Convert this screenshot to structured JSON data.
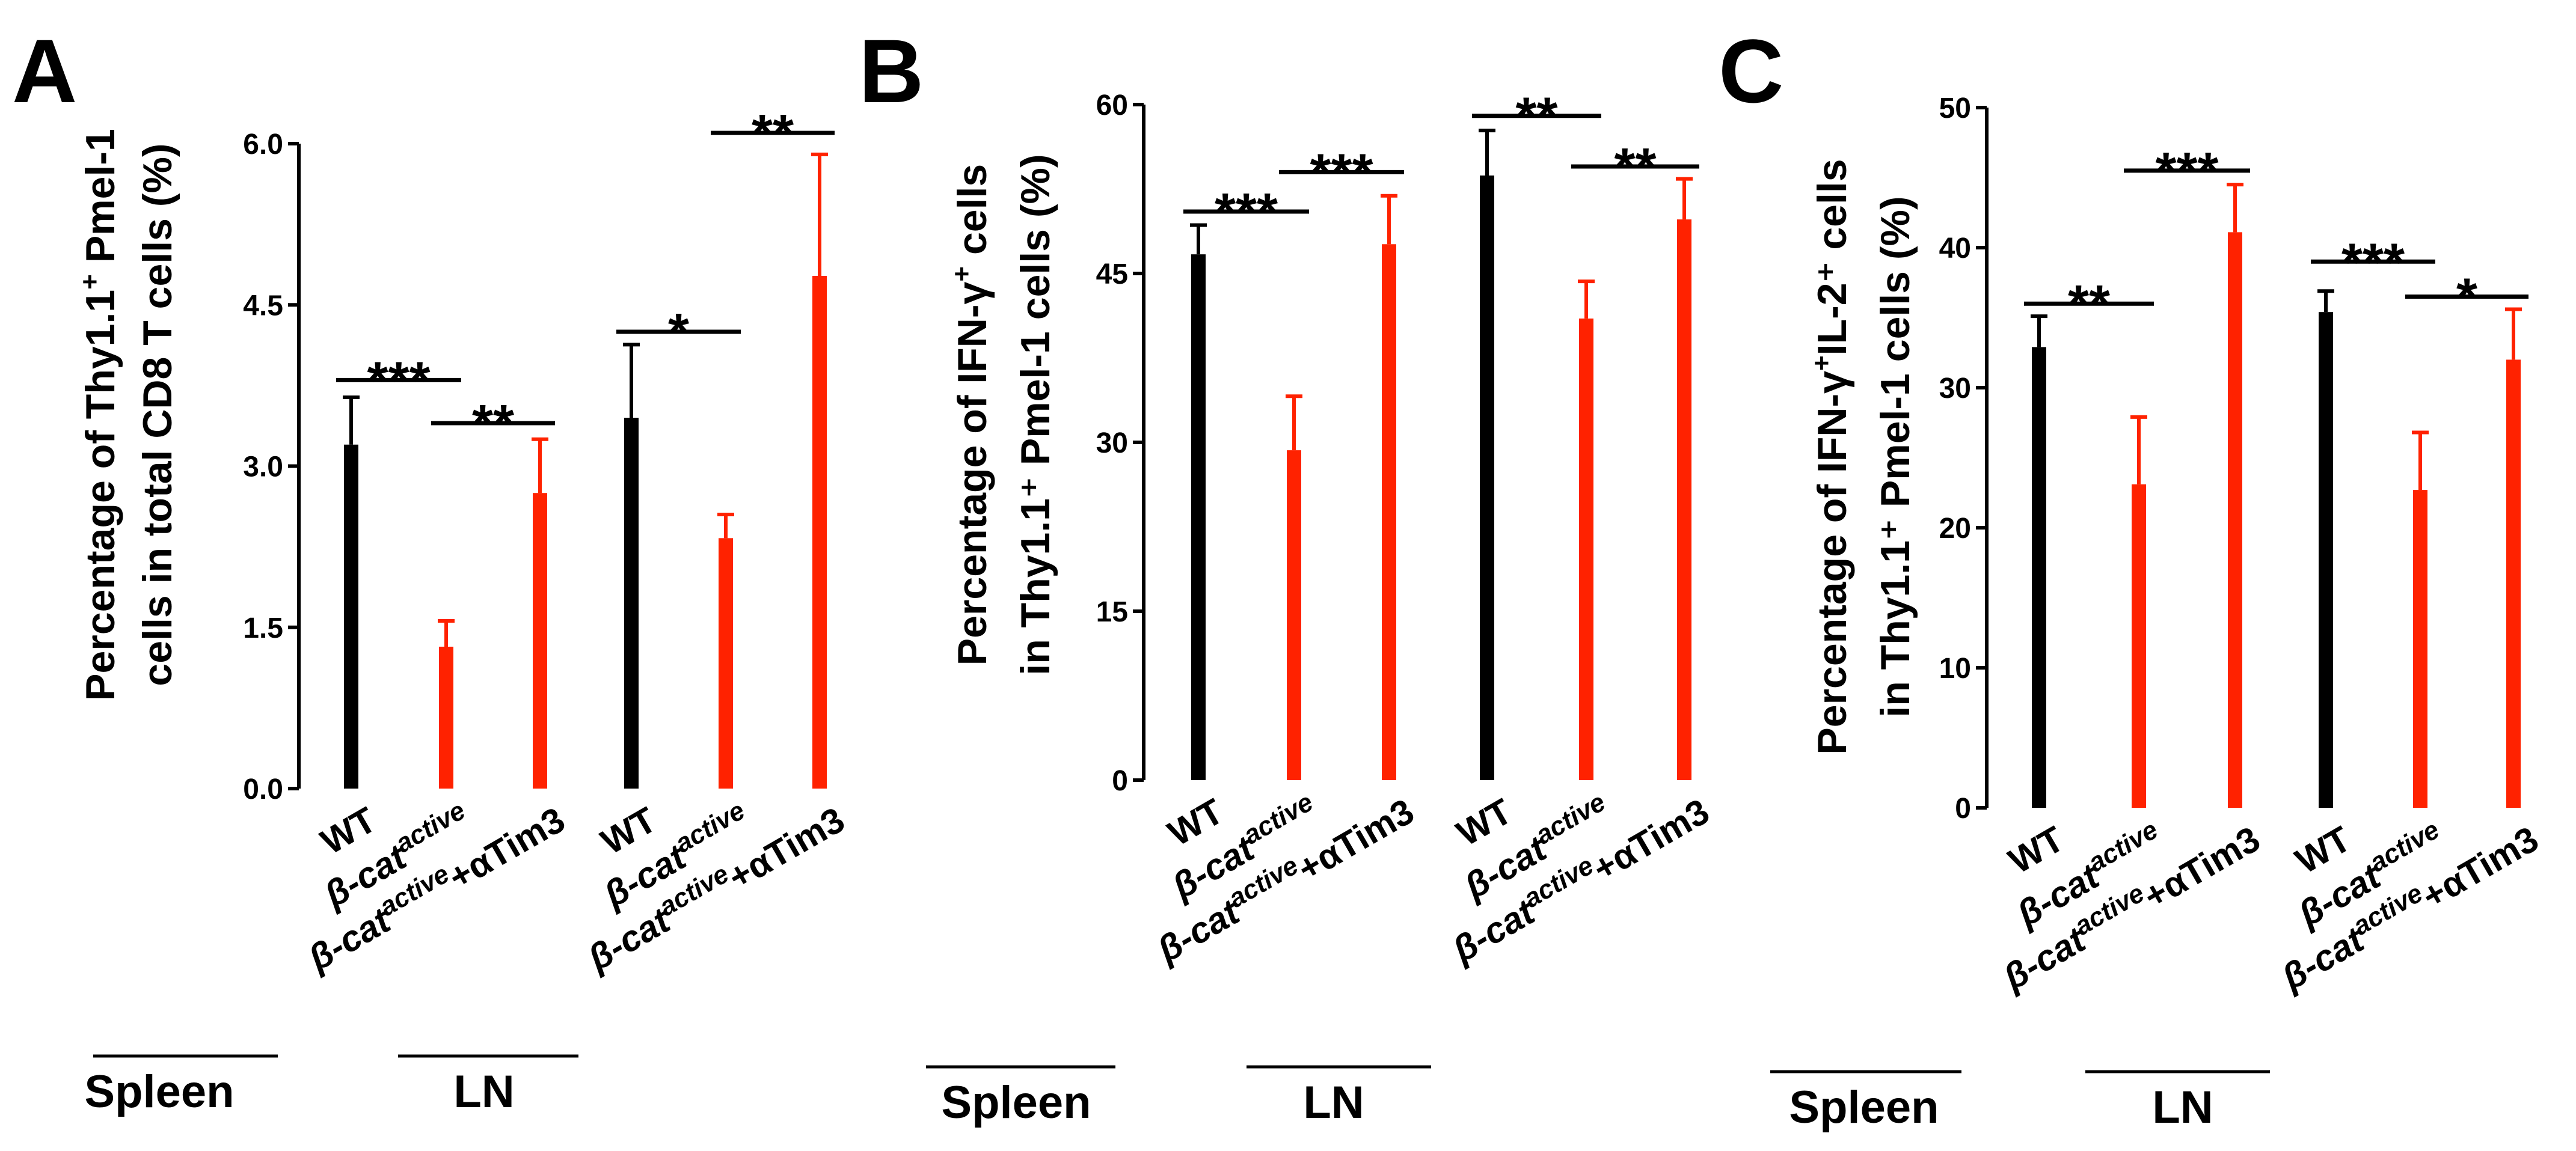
{
  "colors": {
    "wt": "#000000",
    "treated": "#ff2200",
    "axis": "#000000"
  },
  "chart_data": [
    {
      "panel_label": "A",
      "type": "bar",
      "ylabel_line1": "Percentage of Thy1.1",
      "ylabel_sup1": "+",
      "ylabel_line1_tail": " Pmel-1",
      "ylabel_line2": "cells in total CD8 T cells (%)",
      "ylim": [
        0,
        6.0
      ],
      "yticks": [
        "0.0",
        "1.5",
        "3.0",
        "4.5",
        "6.0"
      ],
      "ytick_values": [
        0,
        1.5,
        3.0,
        4.5,
        6.0
      ],
      "categories": [
        "WT",
        "β-cat active",
        "β-cat active+αTim3",
        "WT",
        "β-cat active",
        "β-cat active+αTim3"
      ],
      "values": [
        3.2,
        1.32,
        2.75,
        3.45,
        2.33,
        4.77
      ],
      "errors": [
        0.44,
        0.24,
        0.5,
        0.68,
        0.22,
        1.13
      ],
      "colors": [
        "wt",
        "treated",
        "treated",
        "wt",
        "treated",
        "treated"
      ],
      "significance": [
        {
          "from": 0,
          "to": 1,
          "label": "***",
          "y": 3.8
        },
        {
          "from": 1,
          "to": 2,
          "label": "**",
          "y": 3.4
        },
        {
          "from": 3,
          "to": 4,
          "label": "*",
          "y": 4.25
        },
        {
          "from": 4,
          "to": 5,
          "label": "**",
          "y": 6.1
        }
      ],
      "groups": [
        "Spleen",
        "LN"
      ]
    },
    {
      "panel_label": "B",
      "type": "bar",
      "ylabel_line1": "Percentage of IFN-γ",
      "ylabel_sup1": "+",
      "ylabel_line1_tail": " cells",
      "ylabel_line2": "in Thy1.1⁺ Pmel-1 cells (%)",
      "ylim": [
        0,
        60
      ],
      "yticks": [
        "0",
        "15",
        "30",
        "45",
        "60"
      ],
      "ytick_values": [
        0,
        15,
        30,
        45,
        60
      ],
      "categories": [
        "WT",
        "β-cat active",
        "β-cat active+αTim3",
        "WT",
        "β-cat active",
        "β-cat active+αTim3"
      ],
      "values": [
        46.7,
        29.3,
        47.6,
        53.7,
        41.0,
        49.8
      ],
      "errors": [
        2.6,
        4.8,
        4.3,
        4.0,
        3.3,
        3.6
      ],
      "colors": [
        "wt",
        "treated",
        "treated",
        "wt",
        "treated",
        "treated"
      ],
      "significance": [
        {
          "from": 0,
          "to": 1,
          "label": "***",
          "y": 50.5
        },
        {
          "from": 1,
          "to": 2,
          "label": "***",
          "y": 54.0
        },
        {
          "from": 3,
          "to": 4,
          "label": "**",
          "y": 59.0
        },
        {
          "from": 4,
          "to": 5,
          "label": "**",
          "y": 54.5
        }
      ],
      "groups": [
        "Spleen",
        "LN"
      ]
    },
    {
      "panel_label": "C",
      "type": "bar",
      "ylabel_line1": "Percentage of IFN-γ",
      "ylabel_sup1": "+",
      "ylabel_line1_tail": "IL-2⁺ cells",
      "ylabel_line2": "in Thy1.1⁺ Pmel-1 cells (%)",
      "ylim": [
        0,
        50
      ],
      "yticks": [
        "0",
        "10",
        "20",
        "30",
        "40",
        "50"
      ],
      "ytick_values": [
        0,
        10,
        20,
        30,
        40,
        50
      ],
      "categories": [
        "WT",
        "β-cat active",
        "β-cat active+αTim3",
        "WT",
        "β-cat active",
        "β-cat active+αTim3"
      ],
      "values": [
        32.9,
        23.1,
        41.1,
        35.4,
        22.7,
        32.0
      ],
      "errors": [
        2.2,
        4.8,
        3.4,
        1.5,
        4.1,
        3.6
      ],
      "colors": [
        "wt",
        "treated",
        "treated",
        "wt",
        "treated",
        "treated"
      ],
      "significance": [
        {
          "from": 0,
          "to": 1,
          "label": "**",
          "y": 36.0
        },
        {
          "from": 1,
          "to": 2,
          "label": "***",
          "y": 45.5
        },
        {
          "from": 3,
          "to": 4,
          "label": "***",
          "y": 39.0
        },
        {
          "from": 4,
          "to": 5,
          "label": "*",
          "y": 36.5
        }
      ],
      "groups": [
        "Spleen",
        "LN"
      ]
    }
  ]
}
